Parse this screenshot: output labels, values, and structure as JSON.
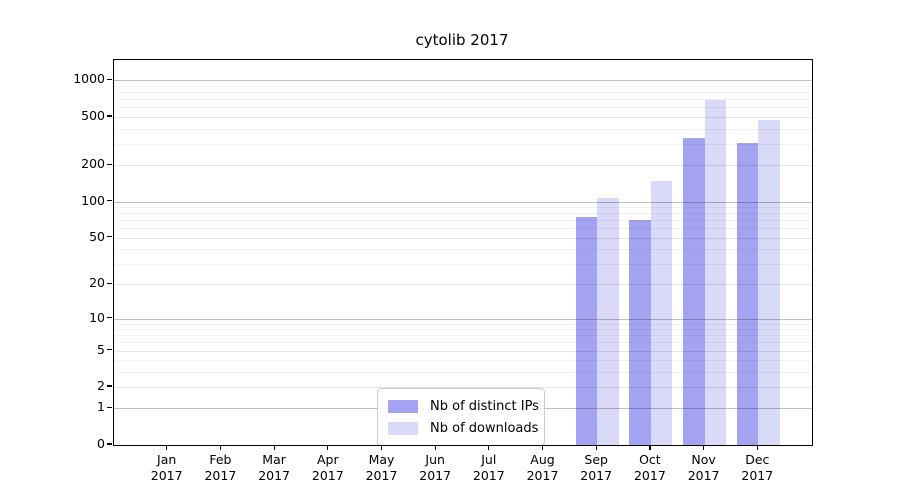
{
  "title": "cytolib 2017",
  "chart_data": {
    "type": "bar",
    "title": "cytolib 2017",
    "y_scale": "log1p",
    "ylim": [
      0,
      1474
    ],
    "y_ticks": [
      0,
      1,
      2,
      5,
      10,
      20,
      50,
      100,
      200,
      500,
      1000
    ],
    "grid": true,
    "legend_position": "inside-bottom-center",
    "categories": [
      {
        "month": "Jan",
        "year": "2017"
      },
      {
        "month": "Feb",
        "year": "2017"
      },
      {
        "month": "Mar",
        "year": "2017"
      },
      {
        "month": "Apr",
        "year": "2017"
      },
      {
        "month": "May",
        "year": "2017"
      },
      {
        "month": "Jun",
        "year": "2017"
      },
      {
        "month": "Jul",
        "year": "2017"
      },
      {
        "month": "Aug",
        "year": "2017"
      },
      {
        "month": "Sep",
        "year": "2017"
      },
      {
        "month": "Oct",
        "year": "2017"
      },
      {
        "month": "Nov",
        "year": "2017"
      },
      {
        "month": "Dec",
        "year": "2017"
      }
    ],
    "series": [
      {
        "name": "Nb of distinct IPs",
        "color": "#a3a3f2",
        "values": [
          0,
          0,
          0,
          0,
          0,
          0,
          0,
          0,
          74,
          70,
          337,
          308
        ]
      },
      {
        "name": "Nb of downloads",
        "color": "#d9d9f8",
        "values": [
          0,
          0,
          0,
          0,
          0,
          0,
          0,
          0,
          107,
          147,
          697,
          470
        ]
      }
    ]
  }
}
